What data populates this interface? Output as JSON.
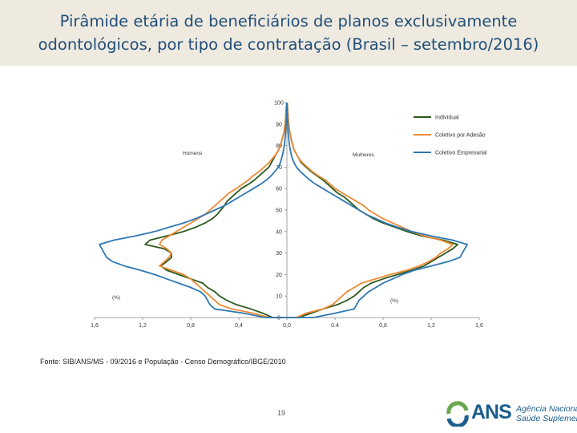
{
  "title": "Pirâmide etária de beneficiários de planos exclusivamente odontológicos, por tipo de contratação (Brasil – setembro/2016)",
  "source": "Fonte: SIB/ANS/MS - 09/2016 e População - Censo Demográfico/IBGE/2010",
  "page_number": "19",
  "logo": {
    "acronym": "ANS",
    "line1": "Agência Nacional de",
    "line2": "Saúde Suplementar"
  },
  "chart_data": {
    "type": "line",
    "title": "",
    "xlabel_left": "(%)",
    "xlabel_right": "(%)",
    "side_labels": {
      "left": "Homens",
      "right": "Mulheres"
    },
    "x_tick_labels": [
      "1,6",
      "1,2",
      "0,8",
      "0,4",
      "0,0",
      "0.4",
      "0,8",
      "1,2",
      "1,6"
    ],
    "x_ticks": [
      -1.6,
      -1.2,
      -0.8,
      -0.4,
      0,
      0.4,
      0.8,
      1.2,
      1.6
    ],
    "y_ticks": [
      0,
      10,
      20,
      30,
      40,
      50,
      60,
      70,
      80,
      90,
      100
    ],
    "xlim": [
      -1.6,
      1.6
    ],
    "ylim": [
      0,
      100
    ],
    "grid": false,
    "legend_position": "top-right",
    "ages": [
      0,
      2,
      4,
      6,
      8,
      10,
      12,
      14,
      16,
      18,
      20,
      22,
      24,
      26,
      28,
      30,
      32,
      34,
      36,
      38,
      40,
      42,
      44,
      46,
      48,
      50,
      52,
      54,
      56,
      58,
      60,
      62,
      64,
      66,
      68,
      70,
      72,
      74,
      76,
      78,
      80,
      82,
      84,
      86,
      88,
      90,
      92,
      94,
      96,
      98,
      100
    ],
    "series": [
      {
        "name": "Individual",
        "color": "#2d5a1e",
        "men": [
          0.12,
          0.2,
          0.3,
          0.42,
          0.5,
          0.56,
          0.6,
          0.66,
          0.7,
          0.8,
          0.9,
          1.0,
          1.05,
          1.0,
          0.96,
          0.96,
          1.02,
          1.18,
          1.14,
          1.0,
          0.86,
          0.76,
          0.68,
          0.62,
          0.58,
          0.55,
          0.52,
          0.5,
          0.46,
          0.42,
          0.38,
          0.32,
          0.27,
          0.23,
          0.19,
          0.15,
          0.13,
          0.11,
          0.09,
          0.07,
          0.055,
          0.045,
          0.035,
          0.025,
          0.02,
          0.015,
          0.012,
          0.009,
          0.007,
          0.005,
          0.003
        ],
        "women": [
          0.1,
          0.2,
          0.3,
          0.42,
          0.5,
          0.56,
          0.6,
          0.64,
          0.7,
          0.8,
          0.92,
          1.04,
          1.14,
          1.2,
          1.26,
          1.32,
          1.38,
          1.42,
          1.3,
          1.12,
          1.0,
          0.9,
          0.8,
          0.72,
          0.66,
          0.6,
          0.56,
          0.52,
          0.48,
          0.42,
          0.38,
          0.34,
          0.3,
          0.25,
          0.2,
          0.16,
          0.12,
          0.1,
          0.08,
          0.06,
          0.05,
          0.04,
          0.032,
          0.025,
          0.02,
          0.015,
          0.012,
          0.009,
          0.007,
          0.005,
          0.003
        ]
      },
      {
        "name": "Coletivo por Adesão",
        "color": "#ee8a33",
        "men": [
          0.15,
          0.28,
          0.46,
          0.56,
          0.6,
          0.64,
          0.68,
          0.72,
          0.76,
          0.8,
          0.86,
          0.96,
          1.06,
          1.02,
          0.98,
          0.96,
          1.0,
          1.06,
          1.04,
          0.98,
          0.92,
          0.86,
          0.8,
          0.74,
          0.68,
          0.64,
          0.6,
          0.56,
          0.52,
          0.48,
          0.42,
          0.37,
          0.32,
          0.28,
          0.23,
          0.19,
          0.15,
          0.12,
          0.09,
          0.07,
          0.055,
          0.045,
          0.035,
          0.025,
          0.02,
          0.015,
          0.012,
          0.009,
          0.007,
          0.005,
          0.003
        ],
        "women": [
          0.08,
          0.16,
          0.3,
          0.38,
          0.42,
          0.46,
          0.5,
          0.56,
          0.62,
          0.74,
          0.86,
          1.0,
          1.1,
          1.18,
          1.24,
          1.28,
          1.34,
          1.38,
          1.28,
          1.14,
          1.04,
          0.96,
          0.88,
          0.8,
          0.74,
          0.68,
          0.64,
          0.58,
          0.52,
          0.46,
          0.4,
          0.36,
          0.32,
          0.26,
          0.21,
          0.17,
          0.13,
          0.1,
          0.08,
          0.06,
          0.05,
          0.04,
          0.032,
          0.025,
          0.02,
          0.015,
          0.012,
          0.009,
          0.007,
          0.005,
          0.003
        ]
      },
      {
        "name": "Coletivo Empresarial",
        "color": "#2e78b4",
        "men": [
          0.18,
          0.36,
          0.6,
          0.64,
          0.66,
          0.68,
          0.72,
          0.8,
          0.9,
          1.0,
          1.1,
          1.22,
          1.35,
          1.45,
          1.5,
          1.52,
          1.54,
          1.56,
          1.44,
          1.26,
          1.1,
          0.98,
          0.86,
          0.76,
          0.68,
          0.6,
          0.52,
          0.46,
          0.4,
          0.34,
          0.28,
          0.22,
          0.17,
          0.13,
          0.1,
          0.07,
          0.055,
          0.045,
          0.035,
          0.028,
          0.022,
          0.018,
          0.014,
          0.011,
          0.009,
          0.007,
          0.005,
          0.004,
          0.003,
          0.002,
          0.001
        ],
        "women": [
          0.22,
          0.4,
          0.56,
          0.58,
          0.6,
          0.64,
          0.68,
          0.74,
          0.8,
          0.88,
          0.96,
          1.06,
          1.2,
          1.34,
          1.44,
          1.46,
          1.48,
          1.5,
          1.38,
          1.2,
          1.04,
          0.92,
          0.82,
          0.74,
          0.66,
          0.6,
          0.54,
          0.48,
          0.42,
          0.36,
          0.3,
          0.24,
          0.19,
          0.15,
          0.11,
          0.08,
          0.06,
          0.045,
          0.035,
          0.028,
          0.022,
          0.018,
          0.014,
          0.011,
          0.009,
          0.007,
          0.005,
          0.004,
          0.003,
          0.002,
          0.001
        ]
      }
    ]
  }
}
